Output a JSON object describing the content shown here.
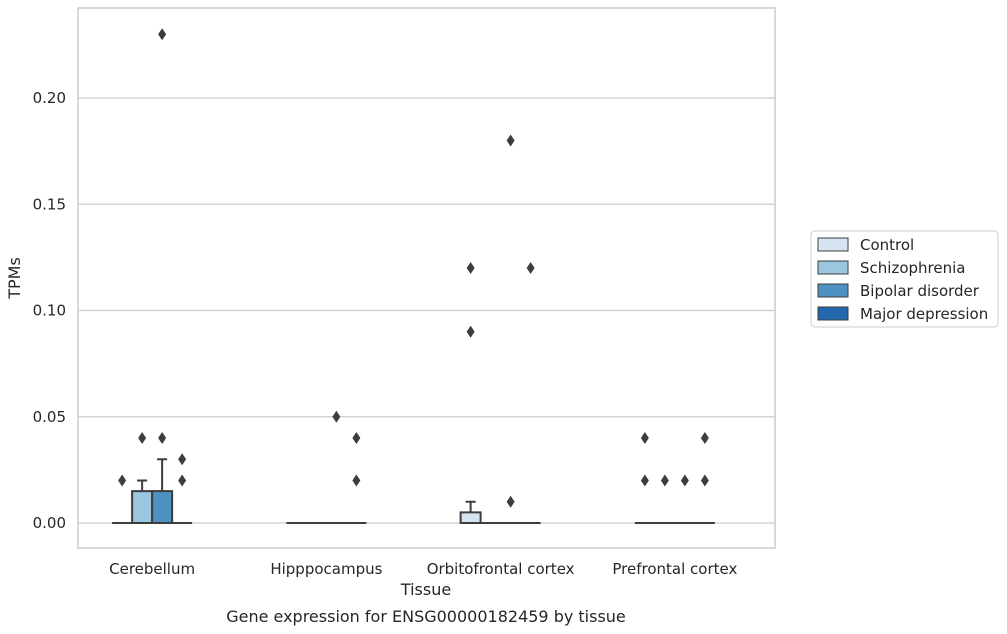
{
  "chart_data": {
    "type": "box",
    "caption": "Gene expression for ENSG00000182459 by tissue",
    "xlabel": "Tissue",
    "ylabel": "TPMs",
    "ylim": [
      -0.011,
      0.242
    ],
    "yticks": [
      0.0,
      0.05,
      0.1,
      0.15,
      0.2
    ],
    "ytick_labels": [
      "0.00",
      "0.05",
      "0.10",
      "0.15",
      "0.20"
    ],
    "grid": true,
    "legend_position": "right",
    "categories": [
      "Cerebellum",
      "Hipppocampus",
      "Orbitofrontal cortex",
      "Prefrontal cortex"
    ],
    "series": [
      {
        "name": "Control",
        "color": "#d6e4f2"
      },
      {
        "name": "Schizophrenia",
        "color": "#9ac6df"
      },
      {
        "name": "Bipolar disorder",
        "color": "#4f91c2"
      },
      {
        "name": "Major depression",
        "color": "#2367ac"
      }
    ],
    "boxes": [
      {
        "category": "Cerebellum",
        "series": "Control",
        "q1": 0,
        "median": 0,
        "q3": 0,
        "whisker_low": 0,
        "whisker_high": 0,
        "outliers": [
          0.02
        ]
      },
      {
        "category": "Cerebellum",
        "series": "Schizophrenia",
        "q1": 0,
        "median": 0,
        "q3": 0.015,
        "whisker_low": 0,
        "whisker_high": 0.02,
        "outliers": [
          0.04
        ]
      },
      {
        "category": "Cerebellum",
        "series": "Bipolar disorder",
        "q1": 0,
        "median": 0,
        "q3": 0.015,
        "whisker_low": 0,
        "whisker_high": 0.03,
        "outliers": [
          0.04,
          0.23
        ]
      },
      {
        "category": "Cerebellum",
        "series": "Major depression",
        "q1": 0,
        "median": 0,
        "q3": 0,
        "whisker_low": 0,
        "whisker_high": 0,
        "outliers": [
          0.02,
          0.03
        ]
      },
      {
        "category": "Hipppocampus",
        "series": "Control",
        "q1": 0,
        "median": 0,
        "q3": 0,
        "whisker_low": 0,
        "whisker_high": 0,
        "outliers": []
      },
      {
        "category": "Hipppocampus",
        "series": "Schizophrenia",
        "q1": 0,
        "median": 0,
        "q3": 0,
        "whisker_low": 0,
        "whisker_high": 0,
        "outliers": []
      },
      {
        "category": "Hipppocampus",
        "series": "Bipolar disorder",
        "q1": 0,
        "median": 0,
        "q3": 0,
        "whisker_low": 0,
        "whisker_high": 0,
        "outliers": [
          0.05
        ]
      },
      {
        "category": "Hipppocampus",
        "series": "Major depression",
        "q1": 0,
        "median": 0,
        "q3": 0,
        "whisker_low": 0,
        "whisker_high": 0,
        "outliers": [
          0.02,
          0.04
        ]
      },
      {
        "category": "Orbitofrontal cortex",
        "series": "Control",
        "q1": 0,
        "median": 0,
        "q3": 0.005,
        "whisker_low": 0,
        "whisker_high": 0.01,
        "outliers": [
          0.09,
          0.12
        ]
      },
      {
        "category": "Orbitofrontal cortex",
        "series": "Schizophrenia",
        "q1": 0,
        "median": 0,
        "q3": 0,
        "whisker_low": 0,
        "whisker_high": 0,
        "outliers": []
      },
      {
        "category": "Orbitofrontal cortex",
        "series": "Bipolar disorder",
        "q1": 0,
        "median": 0,
        "q3": 0,
        "whisker_low": 0,
        "whisker_high": 0,
        "outliers": [
          0.01,
          0.18
        ]
      },
      {
        "category": "Orbitofrontal cortex",
        "series": "Major depression",
        "q1": 0,
        "median": 0,
        "q3": 0,
        "whisker_low": 0,
        "whisker_high": 0,
        "outliers": [
          0.12
        ]
      },
      {
        "category": "Prefrontal cortex",
        "series": "Control",
        "q1": 0,
        "median": 0,
        "q3": 0,
        "whisker_low": 0,
        "whisker_high": 0,
        "outliers": [
          0.02,
          0.04
        ]
      },
      {
        "category": "Prefrontal cortex",
        "series": "Schizophrenia",
        "q1": 0,
        "median": 0,
        "q3": 0,
        "whisker_low": 0,
        "whisker_high": 0,
        "outliers": [
          0.02
        ]
      },
      {
        "category": "Prefrontal cortex",
        "series": "Bipolar disorder",
        "q1": 0,
        "median": 0,
        "q3": 0,
        "whisker_low": 0,
        "whisker_high": 0,
        "outliers": [
          0.02
        ]
      },
      {
        "category": "Prefrontal cortex",
        "series": "Major depression",
        "q1": 0,
        "median": 0,
        "q3": 0,
        "whisker_low": 0,
        "whisker_high": 0,
        "outliers": [
          0.02,
          0.04
        ]
      }
    ],
    "colors": {
      "grid": "#cccccc",
      "frame": "#cccccc",
      "edge": "#3d3d3d",
      "text": "#262626"
    }
  }
}
